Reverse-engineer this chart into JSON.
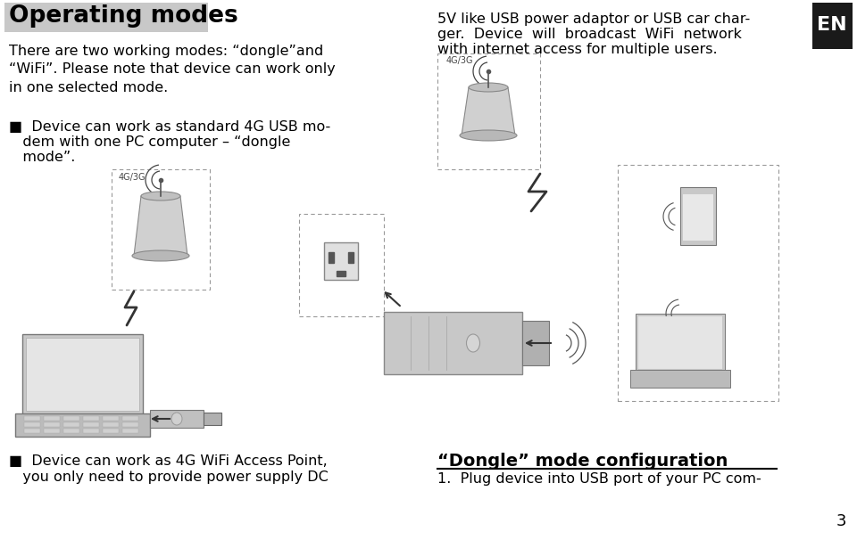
{
  "bg_color": "#ffffff",
  "title_bg": "#c8c8c8",
  "title_text": "Operating modes",
  "title_color": "#000000",
  "title_fontsize": 19,
  "body_text_1": "There are two working modes: “dongle”and\n“WiFi”. Please note that device can work only\nin one selected mode.",
  "bullet1_line1": "■  Device can work as standard 4G USB mo-",
  "bullet1_line2": "   dem with one PC computer – “dongle",
  "bullet1_line3": "   mode”.",
  "right_text_1a": "5V like USB power adaptor or USB car char-",
  "right_text_1b": "ger.  Device  will  broadcast  WiFi  network",
  "right_text_1c": "with internet access for multiple users.",
  "en_label": "EN",
  "en_bg": "#1a1a1a",
  "en_color": "#ffffff",
  "bullet2_line1": "■  Device can work as 4G WiFi Access Point,",
  "bullet2_line2": "   you only need to provide power supply DC",
  "dongle_title": "“Dongle” mode configuration",
  "dongle_text": "1.  Plug device into USB port of your PC com-",
  "page_num": "3",
  "body_fontsize": 11.5,
  "label_4g": "4G/3G",
  "fig_w": 9.6,
  "fig_h": 6.06,
  "dpi": 100
}
